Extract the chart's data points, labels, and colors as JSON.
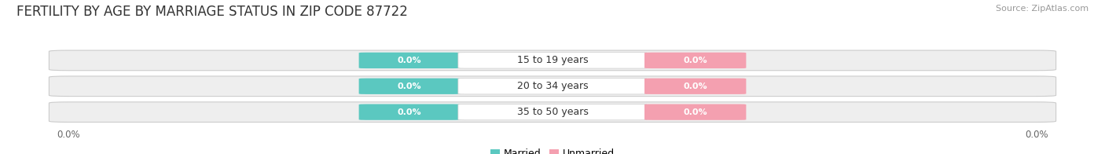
{
  "title": "FERTILITY BY AGE BY MARRIAGE STATUS IN ZIP CODE 87722",
  "source": "Source: ZipAtlas.com",
  "categories": [
    "15 to 19 years",
    "20 to 34 years",
    "35 to 50 years"
  ],
  "married_values": [
    0.0,
    0.0,
    0.0
  ],
  "unmarried_values": [
    0.0,
    0.0,
    0.0
  ],
  "married_color": "#5bc8c0",
  "unmarried_color": "#f4a0b0",
  "bar_bg_color": "#eeeeee",
  "bar_bg_edge": "#dddddd",
  "title_fontsize": 12,
  "source_fontsize": 8,
  "label_fontsize": 9,
  "tick_fontsize": 8.5
}
